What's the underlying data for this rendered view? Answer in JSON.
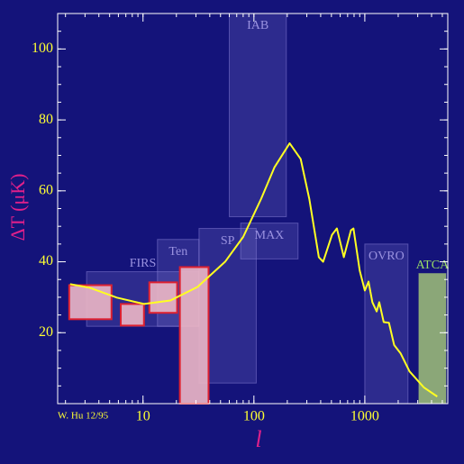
{
  "chart_data": {
    "type": "line",
    "x_label": "l",
    "y_label": "ΔT (μK)",
    "annotation": "W. Hu 12/95",
    "log_x": true,
    "xlim": [
      1.7,
      5600
    ],
    "ylim": [
      0,
      110
    ],
    "xticks": [
      10,
      100,
      1000
    ],
    "yticks": [
      20,
      40,
      60,
      80,
      100
    ],
    "x": [
      2.2,
      3.3,
      5.8,
      10.2,
      17.7,
      31,
      55,
      80,
      116,
      153,
      210,
      264,
      316,
      385,
      421,
      506,
      560,
      647,
      750,
      790,
      900,
      1000,
      1080,
      1170,
      1280,
      1350,
      1480,
      1650,
      1840,
      2100,
      2530,
      3400,
      4500
    ],
    "values": [
      33.7,
      32.7,
      29.9,
      28.1,
      29.1,
      32.9,
      40,
      47,
      57.7,
      66.6,
      73.4,
      69,
      57.7,
      41.3,
      40,
      47.6,
      49.4,
      41.3,
      48.9,
      49.4,
      37.5,
      31.9,
      34.4,
      28.6,
      26,
      28.6,
      23,
      22.8,
      16.5,
      14.2,
      9.1,
      4.6,
      2
    ],
    "color": "#ffff22",
    "boxes": [
      {
        "label": "IAB",
        "l": [
          60,
          196
        ],
        "dT": [
          52.7,
          110
        ],
        "color": "#8a82d8"
      },
      {
        "label": "FIRS",
        "l": [
          3.1,
          32
        ],
        "dT": [
          21.8,
          37.2
        ],
        "color": "#8a82d8"
      },
      {
        "label": "Ten",
        "l": [
          13.5,
          32
        ],
        "dT": [
          21.8,
          46.3
        ],
        "color": "#8a82d8"
      },
      {
        "label": "SP",
        "l": [
          32,
          105
        ],
        "dT": [
          5.8,
          49.4
        ],
        "color": "#8a82d8"
      },
      {
        "label": "MAX",
        "l": [
          76,
          250
        ],
        "dT": [
          40.8,
          50.9
        ],
        "color": "#8a82d8"
      },
      {
        "label": "OVRO",
        "l": [
          1000,
          2450
        ],
        "dT": [
          0,
          45
        ],
        "color": "#8a82d8"
      },
      {
        "label": "ATCA",
        "l": [
          3070,
          5390
        ],
        "dT": [
          0,
          36.7
        ],
        "color": "#98b878",
        "label_color": "#99dd66"
      },
      {
        "l": [
          2.16,
          5.2
        ],
        "dT": [
          23.8,
          33.4
        ],
        "color": "#e9b4c4",
        "stroke": "#dd2030"
      },
      {
        "l": [
          6.3,
          10.2
        ],
        "dT": [
          22,
          28.1
        ],
        "color": "#e9b4c4",
        "stroke": "#dd2030"
      },
      {
        "l": [
          11.4,
          20.3
        ],
        "dT": [
          25.6,
          34.2
        ],
        "color": "#e9b4c4",
        "stroke": "#dd2030"
      },
      {
        "l": [
          21.5,
          39
        ],
        "dT": [
          0,
          38.5
        ],
        "color": "#e9b4c4",
        "stroke": "#dd2030"
      }
    ]
  }
}
